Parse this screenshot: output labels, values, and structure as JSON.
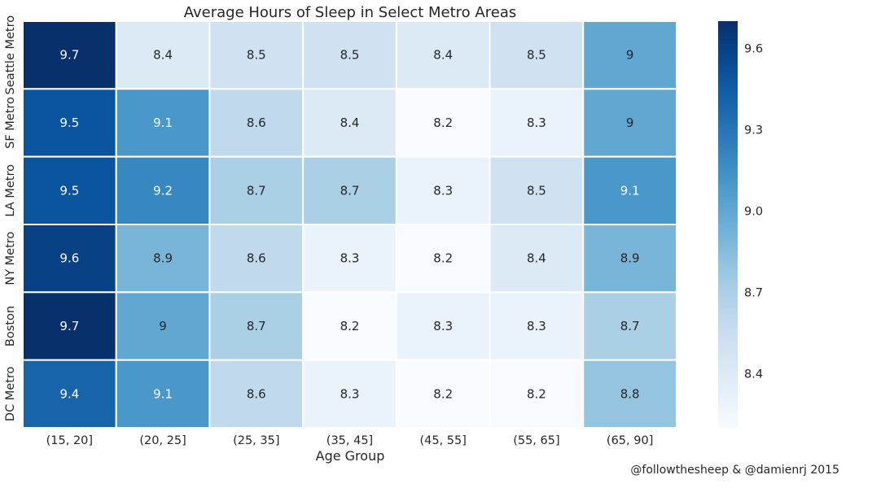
{
  "chart_data": {
    "type": "heatmap",
    "title": "Average Hours of Sleep in Select Metro Areas",
    "xlabel": "Age Group",
    "ylabel": "",
    "x_categories": [
      "(15, 20]",
      "(20, 25]",
      "(25, 35]",
      "(35, 45]",
      "(45, 55]",
      "(55, 65]",
      "(65, 90]"
    ],
    "y_categories": [
      "Seattle Metro",
      "SF Metro",
      "LA Metro",
      "NY Metro",
      "Boston",
      "DC Metro"
    ],
    "values": [
      [
        9.7,
        8.4,
        8.5,
        8.5,
        8.4,
        8.5,
        9.0
      ],
      [
        9.5,
        9.1,
        8.6,
        8.4,
        8.2,
        8.3,
        9.0
      ],
      [
        9.5,
        9.2,
        8.7,
        8.7,
        8.3,
        8.5,
        9.1
      ],
      [
        9.6,
        8.9,
        8.6,
        8.3,
        8.2,
        8.4,
        8.9
      ],
      [
        9.7,
        9.0,
        8.7,
        8.2,
        8.3,
        8.3,
        8.7
      ],
      [
        9.4,
        9.1,
        8.6,
        8.3,
        8.2,
        8.2,
        8.8
      ]
    ],
    "colormap": "Blues",
    "color_range": [
      8.2,
      9.7
    ],
    "colorbar_ticks": [
      "8.4",
      "8.7",
      "9.0",
      "9.3",
      "9.6"
    ],
    "grid": true
  },
  "credit": "@followthesheep & @damienrj 2015"
}
